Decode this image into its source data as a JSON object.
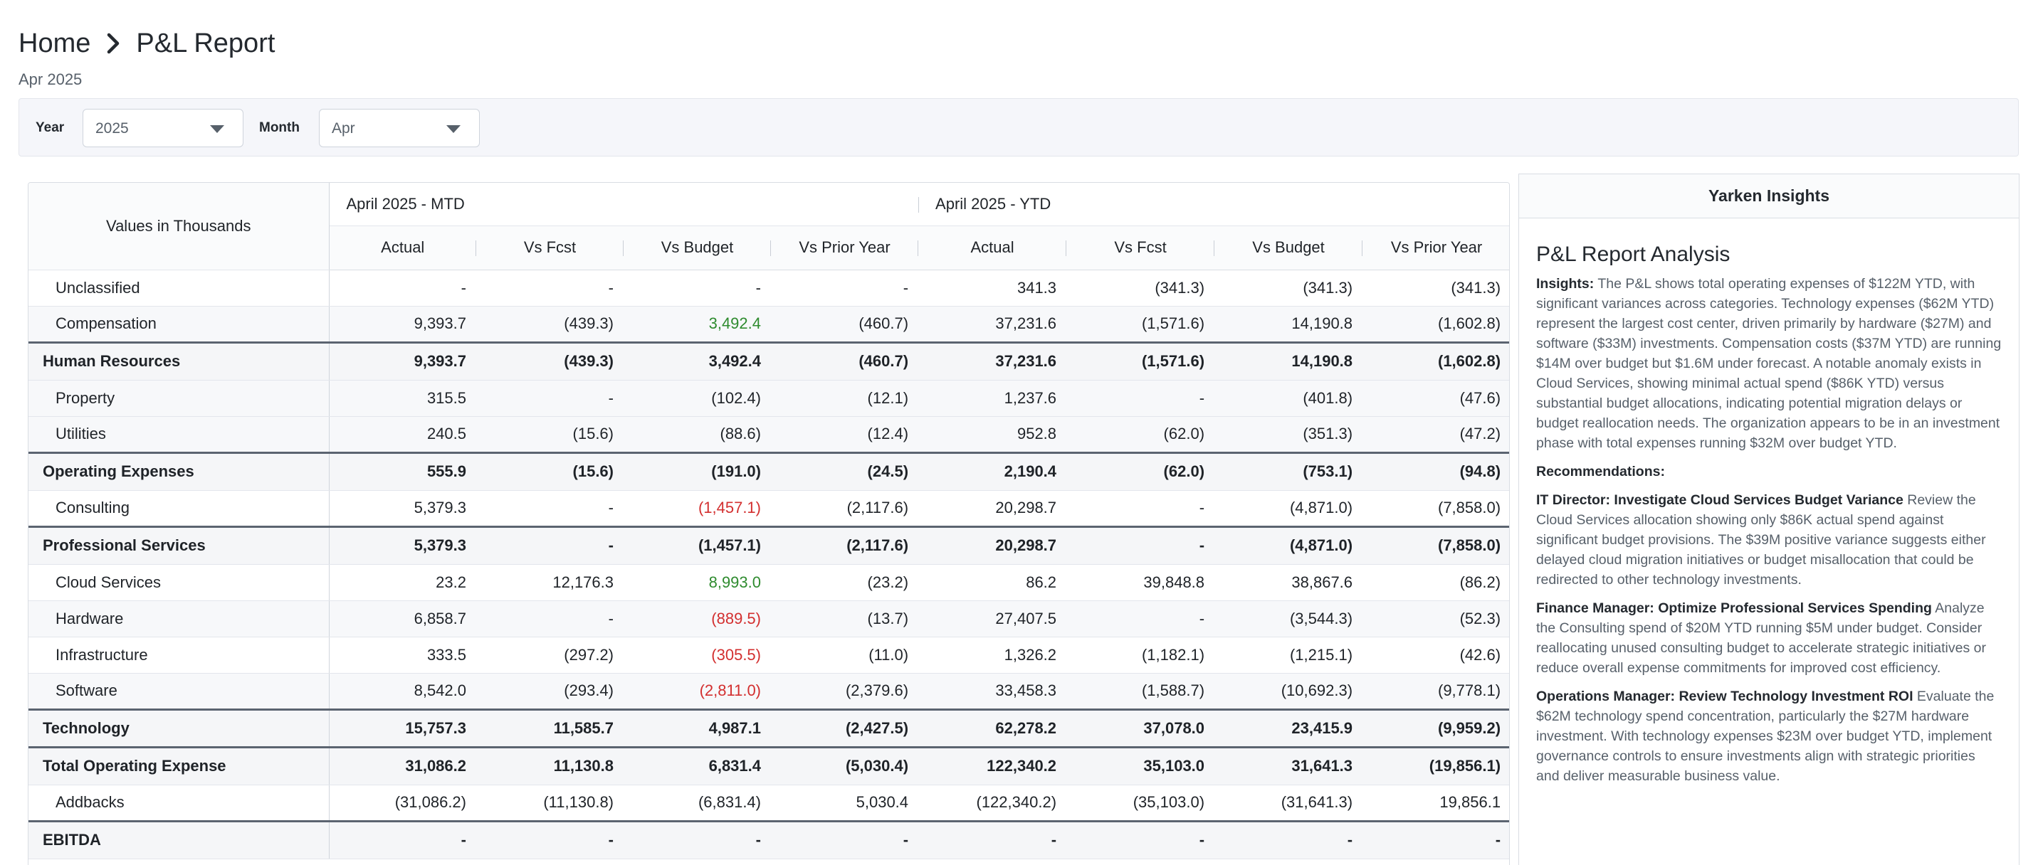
{
  "breadcrumb": {
    "home": "Home",
    "current": "P&L Report"
  },
  "subtitle": "Apr 2025",
  "filters": {
    "year_label": "Year",
    "year_value": "2025",
    "month_label": "Month",
    "month_value": "Apr"
  },
  "table": {
    "values_label": "Values in Thousands",
    "groups": [
      "April 2025 - MTD",
      "April 2025 - YTD"
    ],
    "columns": [
      "Actual",
      "Vs Fcst",
      "Vs Budget",
      "Vs Prior Year",
      "Actual",
      "Vs Fcst",
      "Vs Budget",
      "Vs Prior Year"
    ],
    "rows": [
      {
        "label": "Unclassified",
        "type": "sub",
        "values": [
          "-",
          "-",
          "-",
          "-",
          "341.3",
          "(341.3)",
          "(341.3)",
          "(341.3)"
        ]
      },
      {
        "label": "Compensation",
        "type": "sub",
        "values": [
          "9,393.7",
          "(439.3)",
          "3,492.4",
          "(460.7)",
          "37,231.6",
          "(1,571.6)",
          "14,190.8",
          "(1,602.8)"
        ],
        "colors": {
          "2": "pos"
        }
      },
      {
        "label": "Human Resources",
        "type": "tot",
        "values": [
          "9,393.7",
          "(439.3)",
          "3,492.4",
          "(460.7)",
          "37,231.6",
          "(1,571.6)",
          "14,190.8",
          "(1,602.8)"
        ]
      },
      {
        "label": "Property",
        "type": "sub",
        "values": [
          "315.5",
          "-",
          "(102.4)",
          "(12.1)",
          "1,237.6",
          "-",
          "(401.8)",
          "(47.6)"
        ]
      },
      {
        "label": "Utilities",
        "type": "sub",
        "values": [
          "240.5",
          "(15.6)",
          "(88.6)",
          "(12.4)",
          "952.8",
          "(62.0)",
          "(351.3)",
          "(47.2)"
        ]
      },
      {
        "label": "Operating Expenses",
        "type": "tot",
        "values": [
          "555.9",
          "(15.6)",
          "(191.0)",
          "(24.5)",
          "2,190.4",
          "(62.0)",
          "(753.1)",
          "(94.8)"
        ]
      },
      {
        "label": "Consulting",
        "type": "sub",
        "values": [
          "5,379.3",
          "-",
          "(1,457.1)",
          "(2,117.6)",
          "20,298.7",
          "-",
          "(4,871.0)",
          "(7,858.0)"
        ],
        "colors": {
          "2": "neg"
        }
      },
      {
        "label": "Professional Services",
        "type": "tot",
        "values": [
          "5,379.3",
          "-",
          "(1,457.1)",
          "(2,117.6)",
          "20,298.7",
          "-",
          "(4,871.0)",
          "(7,858.0)"
        ]
      },
      {
        "label": "Cloud Services",
        "type": "sub",
        "values": [
          "23.2",
          "12,176.3",
          "8,993.0",
          "(23.2)",
          "86.2",
          "39,848.8",
          "38,867.6",
          "(86.2)"
        ],
        "colors": {
          "2": "pos"
        }
      },
      {
        "label": "Hardware",
        "type": "sub",
        "values": [
          "6,858.7",
          "-",
          "(889.5)",
          "(13.7)",
          "27,407.5",
          "-",
          "(3,544.3)",
          "(52.3)"
        ],
        "colors": {
          "2": "neg"
        }
      },
      {
        "label": "Infrastructure",
        "type": "sub",
        "values": [
          "333.5",
          "(297.2)",
          "(305.5)",
          "(11.0)",
          "1,326.2",
          "(1,182.1)",
          "(1,215.1)",
          "(42.6)"
        ],
        "colors": {
          "2": "neg"
        }
      },
      {
        "label": "Software",
        "type": "sub",
        "values": [
          "8,542.0",
          "(293.4)",
          "(2,811.0)",
          "(2,379.6)",
          "33,458.3",
          "(1,588.7)",
          "(10,692.3)",
          "(9,778.1)"
        ],
        "colors": {
          "2": "neg"
        }
      },
      {
        "label": "Technology",
        "type": "tot",
        "values": [
          "15,757.3",
          "11,585.7",
          "4,987.1",
          "(2,427.5)",
          "62,278.2",
          "37,078.0",
          "23,415.9",
          "(9,959.2)"
        ]
      },
      {
        "label": "Total Operating Expense",
        "type": "tot",
        "values": [
          "31,086.2",
          "11,130.8",
          "6,831.4",
          "(5,030.4)",
          "122,340.2",
          "35,103.0",
          "31,641.3",
          "(19,856.1)"
        ]
      },
      {
        "label": "Addbacks",
        "type": "sub",
        "values": [
          "(31,086.2)",
          "(11,130.8)",
          "(6,831.4)",
          "5,030.4",
          "(122,340.2)",
          "(35,103.0)",
          "(31,641.3)",
          "19,856.1"
        ]
      },
      {
        "label": "EBITDA",
        "type": "tot",
        "values": [
          "-",
          "-",
          "-",
          "-",
          "-",
          "-",
          "-",
          "-"
        ]
      }
    ]
  },
  "insights": {
    "header": "Yarken Insights",
    "title": "P&L Report Analysis",
    "insights_label": "Insights:",
    "insights_text": " The P&L shows total operating expenses of $122M YTD, with significant variances across categories. Technology expenses ($62M YTD) represent the largest cost center, driven primarily by hardware ($27M) and software ($33M) investments. Compensation costs ($37M YTD) are running $14M over budget but $1.6M under forecast. A notable anomaly exists in Cloud Services, showing minimal actual spend ($86K YTD) versus substantial budget allocations, indicating potential migration delays or budget reallocation needs. The organization appears to be in an investment phase with total expenses running $32M over budget YTD.",
    "recommendations_label": "Recommendations:",
    "recommendations": [
      {
        "title": "IT Director: Investigate Cloud Services Budget Variance",
        "text": " Review the Cloud Services allocation showing only $86K actual spend against significant budget provisions. The $39M positive variance suggests either delayed cloud migration initiatives or budget misallocation that could be redirected to other technology investments."
      },
      {
        "title": "Finance Manager: Optimize Professional Services Spending",
        "text": " Analyze the Consulting spend of $20M YTD running $5M under budget. Consider reallocating unused consulting budget to accelerate strategic initiatives or reduce overall expense commitments for improved cost efficiency."
      },
      {
        "title": "Operations Manager: Review Technology Investment ROI",
        "text": " Evaluate the $62M technology spend concentration, particularly the $27M hardware investment. With technology expenses $23M over budget YTD, implement governance controls to ensure investments align with strategic priorities and deliver measurable business value."
      }
    ]
  }
}
